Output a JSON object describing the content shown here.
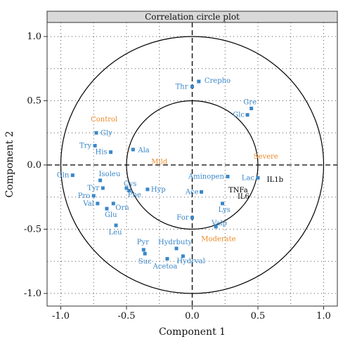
{
  "chart_data": {
    "type": "scatter",
    "title": "Correlation circle plot",
    "xlabel": "Component 1",
    "ylabel": "Component 2",
    "xlim": [
      -1.1,
      1.1
    ],
    "ylim": [
      -1.1,
      1.1
    ],
    "x_ticks": [
      "-1.0",
      "-0.5",
      "0.0",
      "0.5",
      "1.0"
    ],
    "y_ticks": [
      "-1.0",
      "-0.5",
      "0.0",
      "0.5",
      "1.0"
    ],
    "x_tick_values": [
      -1.0,
      -0.5,
      0.0,
      0.5,
      1.0
    ],
    "y_tick_values": [
      -1.0,
      -0.5,
      0.0,
      0.5,
      1.0
    ],
    "circle_radii": [
      0.5,
      1.0
    ],
    "grid": "dotted",
    "colors": {
      "metabolites": "#3a87c8",
      "groups": "#ee8a2b",
      "cytokines": "#000000"
    },
    "metabolites": [
      {
        "label": "Crepho",
        "x": 0.05,
        "y": 0.65
      },
      {
        "label": "Thr",
        "x": 0.0,
        "y": 0.61
      },
      {
        "label": "Gre",
        "x": 0.45,
        "y": 0.44
      },
      {
        "label": "Glc",
        "x": 0.42,
        "y": 0.39
      },
      {
        "label": "Gly",
        "x": -0.73,
        "y": 0.25
      },
      {
        "label": "Try",
        "x": -0.74,
        "y": 0.15
      },
      {
        "label": "His",
        "x": -0.62,
        "y": 0.1
      },
      {
        "label": "Ala",
        "x": -0.45,
        "y": 0.12
      },
      {
        "label": "Gln",
        "x": -0.91,
        "y": -0.08
      },
      {
        "label": "Isoleu",
        "x": -0.7,
        "y": -0.12
      },
      {
        "label": "Tyr",
        "x": -0.68,
        "y": -0.18
      },
      {
        "label": "Cys",
        "x": -0.5,
        "y": -0.18
      },
      {
        "label": "Phe",
        "x": -0.48,
        "y": -0.2
      },
      {
        "label": "Hyp",
        "x": -0.34,
        "y": -0.19
      },
      {
        "label": "Pro",
        "x": -0.75,
        "y": -0.24
      },
      {
        "label": "Val",
        "x": -0.72,
        "y": -0.3
      },
      {
        "label": "Orn",
        "x": -0.6,
        "y": -0.3
      },
      {
        "label": "Glu",
        "x": -0.65,
        "y": -0.34
      },
      {
        "label": "Leu",
        "x": -0.58,
        "y": -0.47
      },
      {
        "label": "Aminopen",
        "x": 0.27,
        "y": -0.09
      },
      {
        "label": "Lac",
        "x": 0.5,
        "y": -0.1
      },
      {
        "label": "Ace",
        "x": 0.07,
        "y": -0.21
      },
      {
        "label": "Lys",
        "x": 0.23,
        "y": -0.3
      },
      {
        "label": "For",
        "x": 0.0,
        "y": -0.41
      },
      {
        "label": "Valp",
        "x": 0.18,
        "y": -0.48
      },
      {
        "label": "Hydrbuty",
        "x": -0.12,
        "y": -0.65
      },
      {
        "label": "Pyr",
        "x": -0.37,
        "y": -0.66
      },
      {
        "label": "Suc",
        "x": -0.36,
        "y": -0.69
      },
      {
        "label": "Hydrval",
        "x": -0.07,
        "y": -0.71
      },
      {
        "label": "Acetoa",
        "x": -0.19,
        "y": -0.73
      }
    ],
    "groups": [
      {
        "label": "Control",
        "x": -0.67,
        "y": 0.36
      },
      {
        "label": "Mild",
        "x": -0.25,
        "y": 0.03
      },
      {
        "label": "Severe",
        "x": 0.56,
        "y": 0.07
      },
      {
        "label": "Moderate",
        "x": 0.2,
        "y": -0.57
      }
    ],
    "cytokines": [
      {
        "label": "IL1b",
        "x": 0.63,
        "y": -0.11
      },
      {
        "label": "TNFa",
        "x": 0.35,
        "y": -0.19
      },
      {
        "label": "IL6",
        "x": 0.39,
        "y": -0.24
      }
    ]
  }
}
